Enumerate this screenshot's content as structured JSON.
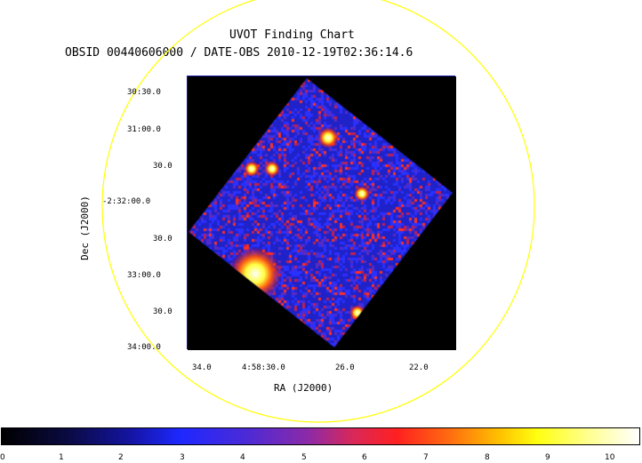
{
  "title_line1": "UVOT Finding Chart",
  "title_line2": "OBSID 00440606000 / DATE-OBS 2010-12-19T02:36:14.6",
  "dec_ticks": [
    "30:30.0",
    "31:00.0",
    "30.0",
    "-2:32:00.0",
    "30.0",
    "33:00.0",
    "30.0",
    "34:00.0"
  ],
  "ra_ticks": [
    "34.0",
    "4:58:30.0",
    "26.0",
    "22.0"
  ],
  "xlabel": "RA (J2000)",
  "ylabel": "Dec (J2000)",
  "colorbar_ticks": [
    "0",
    "1",
    "2",
    "3",
    "4",
    "5",
    "6",
    "7",
    "8",
    "9",
    "10"
  ],
  "colors": {
    "circle": "#ffff00",
    "frame": "#1a1aa0",
    "background_sky": "#2028d8"
  },
  "icons": [
    "source-circle-region",
    "colorbar"
  ]
}
